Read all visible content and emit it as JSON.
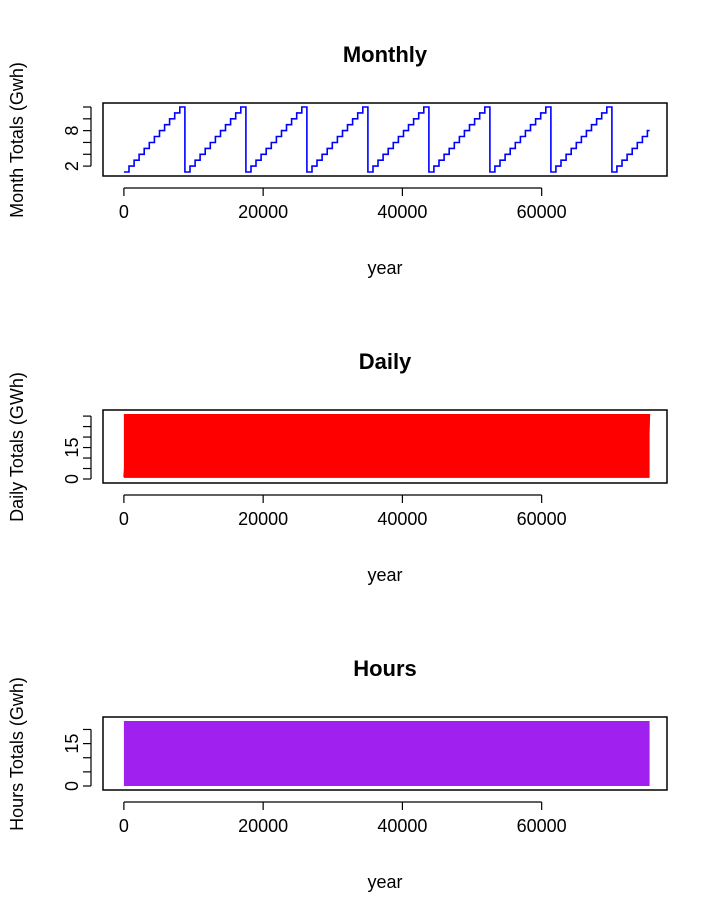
{
  "colors": {
    "monthly": "#0000FF",
    "daily": "#FF0000",
    "hours": "#A020F0",
    "axis": "#000000",
    "background": "#FFFFFF"
  },
  "chart_data": [
    {
      "type": "line",
      "title": "Monthly",
      "xlabel": "year",
      "ylabel": "Month Totals (Gwh)",
      "xlim": [
        -3000,
        78000
      ],
      "ylim": [
        1,
        12
      ],
      "x_ticks": [
        0,
        20000,
        40000,
        60000
      ],
      "x_tick_labels": [
        "0",
        "20000",
        "40000",
        "60000"
      ],
      "y_ticks": [
        2,
        4,
        6,
        8,
        10,
        12
      ],
      "y_tick_labels": [
        "2",
        "",
        "",
        "8",
        "",
        ""
      ],
      "step": true,
      "x": [
        0,
        8760,
        17520,
        26280,
        35040,
        43800,
        52560,
        61320,
        70080,
        75500
      ],
      "values_description": "month index 1-12 repeating each year (8760 hours)",
      "series": [
        {
          "color": "blue",
          "cycle_length": 8760,
          "min": 1,
          "max": 12,
          "end_x": 75500,
          "end_value": 8
        }
      ]
    },
    {
      "type": "line",
      "title": "Daily",
      "xlabel": "year",
      "ylabel": "Daily Totals (GWh)",
      "xlim": [
        -3000,
        78000
      ],
      "ylim": [
        0,
        31
      ],
      "x_ticks": [
        0,
        20000,
        40000,
        60000
      ],
      "x_tick_labels": [
        "0",
        "20000",
        "40000",
        "60000"
      ],
      "y_ticks": [
        0,
        5,
        10,
        15,
        20,
        25,
        30
      ],
      "y_tick_labels": [
        "0",
        "",
        "",
        "15",
        "",
        "",
        ""
      ],
      "series": [
        {
          "color": "red",
          "cycle_length": 730,
          "min": 1,
          "max": 31,
          "end_x": 75500
        }
      ]
    },
    {
      "type": "area",
      "title": "Hours",
      "xlabel": "year",
      "ylabel": "Hours Totals (Gwh)",
      "xlim": [
        -3000,
        78000
      ],
      "ylim": [
        0,
        23
      ],
      "x_ticks": [
        0,
        20000,
        40000,
        60000
      ],
      "x_tick_labels": [
        "0",
        "20000",
        "40000",
        "60000"
      ],
      "y_ticks": [
        0,
        5,
        10,
        15,
        20
      ],
      "y_tick_labels": [
        "0",
        "",
        "",
        "15",
        ""
      ],
      "series": [
        {
          "color": "purple",
          "min": 0,
          "max": 23,
          "end_x": 75500
        }
      ]
    }
  ]
}
